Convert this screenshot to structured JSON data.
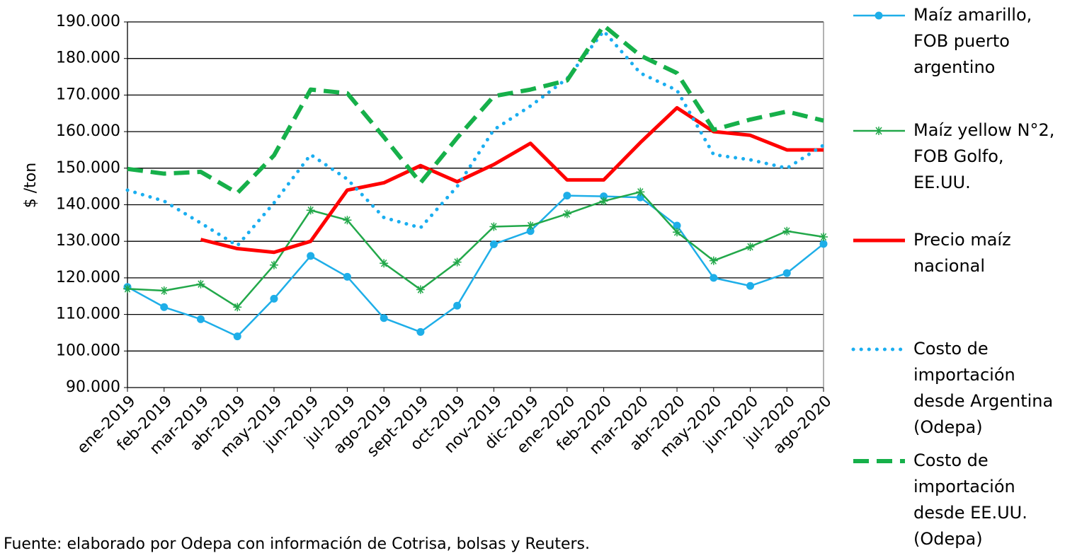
{
  "chart_data": {
    "type": "line",
    "y_label": "$ /ton",
    "note": "Fuente:  elaborado por Odepa con información de Cotrisa, bolsas y Reuters.",
    "categories": [
      "ene-2019",
      "feb-2019",
      "mar-2019",
      "abr-2019",
      "may-2019",
      "jun-2019",
      "jul-2019",
      "ago-2019",
      "sept-2019",
      "oct-2019",
      "nov-2019",
      "dic-2019",
      "ene-2020",
      "feb-2020",
      "mar-2020",
      "abr-2020",
      "may-2020",
      "jun-2020",
      "jul-2020",
      "ago-2020"
    ],
    "ylim": [
      90000,
      190000
    ],
    "yticks": [
      {
        "value": 90000,
        "label": "90.000"
      },
      {
        "value": 100000,
        "label": "100.000"
      },
      {
        "value": 110000,
        "label": "110.000"
      },
      {
        "value": 120000,
        "label": "120.000"
      },
      {
        "value": 130000,
        "label": "130.000"
      },
      {
        "value": 140000,
        "label": "140.000"
      },
      {
        "value": 150000,
        "label": "150.000"
      },
      {
        "value": 160000,
        "label": "160.000"
      },
      {
        "value": 170000,
        "label": "170.000"
      },
      {
        "value": 180000,
        "label": "180.000"
      },
      {
        "value": 190000,
        "label": "190.000"
      }
    ],
    "grid": true,
    "legend": "right",
    "series": [
      {
        "name": "Maíz amarillo, FOB puerto argentino",
        "color": "#1eaee8",
        "style": "solid",
        "marker": "circle",
        "values": [
          117500,
          112000,
          108700,
          104000,
          114300,
          126000,
          120300,
          109000,
          105200,
          112400,
          129200,
          132800,
          142500,
          142300,
          142000,
          134300,
          120000,
          117800,
          121300,
          129300
        ]
      },
      {
        "name": "Maíz yellow N°2, FOB Golfo, EE.UU.",
        "color": "#22a84a",
        "style": "solid",
        "marker": "asterisk",
        "values": [
          117000,
          116500,
          118300,
          112000,
          123500,
          138500,
          135800,
          124000,
          116800,
          124300,
          134000,
          134300,
          137500,
          141000,
          143500,
          132500,
          124700,
          128500,
          132800,
          131200
        ]
      },
      {
        "name": "Precio maíz nacional",
        "color": "#ff0000",
        "style": "thick",
        "marker": "none",
        "values": [
          null,
          null,
          130500,
          128000,
          127000,
          130000,
          144000,
          146000,
          150700,
          146300,
          151000,
          156800,
          146800,
          146800,
          157000,
          166500,
          160000,
          159000,
          155000,
          155000
        ]
      },
      {
        "name": "Costo de importación desde Argentina (Odepa)",
        "color": "#1aaef0",
        "style": "dotted",
        "marker": "none",
        "values": [
          144000,
          141000,
          135000,
          128800,
          140500,
          153700,
          147000,
          136500,
          133700,
          145000,
          160500,
          167000,
          174500,
          187500,
          176000,
          171300,
          153700,
          152300,
          150000,
          156300
        ]
      },
      {
        "name": "Costo de importación desde EE.UU. (Odepa)",
        "color": "#16b04a",
        "style": "dashed",
        "marker": "none",
        "values": [
          149800,
          148500,
          149000,
          143200,
          153500,
          171500,
          170500,
          158500,
          146000,
          158300,
          169700,
          171500,
          174000,
          189000,
          180800,
          176000,
          160500,
          163300,
          165500,
          163000
        ]
      }
    ]
  }
}
